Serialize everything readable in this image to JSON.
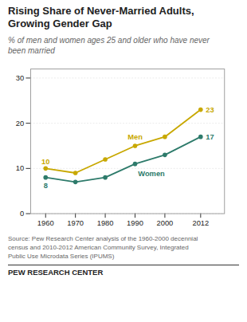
{
  "chart_data": {
    "type": "line",
    "title": "Rising Share of Never-Married Adults,\nGrowing Gender Gap",
    "subtitle": "% of men and women ages 25 and older who have never\nbeen married",
    "x": [
      1960,
      1970,
      1980,
      1990,
      2000,
      2012
    ],
    "series": [
      {
        "name": "Men",
        "color": "#C8A800",
        "marker": "o",
        "values": [
          10,
          9,
          12,
          15,
          17,
          23
        ],
        "value_labels": [
          "10",
          null,
          null,
          null,
          null,
          "23"
        ]
      },
      {
        "name": "Women",
        "color": "#2E7B6B",
        "marker": "o",
        "values": [
          8,
          7,
          8,
          11,
          13,
          17
        ],
        "value_labels": [
          "8",
          null,
          null,
          null,
          null,
          "17"
        ]
      }
    ],
    "xlim": [
      1955,
      2020
    ],
    "xticks": [
      1960,
      1970,
      1980,
      1990,
      2000,
      2012
    ],
    "ylim": [
      0,
      32
    ],
    "yticks": [
      0,
      10,
      20,
      30
    ],
    "grid": true,
    "source": "Source: Pew Research Center analysis of the 1960-2000 decennial\ncensus and 2010-2012 American Community Survey, Integrated\nPublic Use Microdata Series (IPUMS)",
    "footer": "PEW RESEARCH CENTER"
  }
}
